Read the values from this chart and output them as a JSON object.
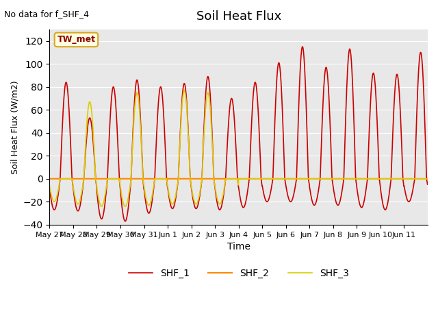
{
  "title": "Soil Heat Flux",
  "ylabel": "Soil Heat Flux (W/m2)",
  "xlabel": "Time",
  "note": "No data for f_SHF_4",
  "station_label": "TW_met",
  "ylim": [
    -40,
    130
  ],
  "yticks": [
    -40,
    -20,
    0,
    20,
    40,
    60,
    80,
    100,
    120
  ],
  "colors": {
    "SHF_1": "#cc0000",
    "SHF_2": "#ff8800",
    "SHF_3": "#ddcc00"
  },
  "xtick_labels": [
    "May 27",
    "May 28",
    "May 29",
    "May 30",
    "May 31",
    "Jun 1",
    "Jun 2",
    "Jun 3",
    "Jun 4",
    "Jun 5",
    "Jun 6",
    "Jun 7",
    "Jun 8",
    "Jun 9",
    "Jun 10",
    "Jun 11"
  ],
  "bg_color": "#e8e8e8",
  "bg_outer": "#ffffff",
  "daily_peaks_SHF1": [
    84,
    53,
    80,
    86,
    80,
    83,
    89,
    70,
    84,
    101,
    115,
    97,
    113,
    92,
    91,
    110
  ],
  "daily_peaks_SHF3": [
    0,
    67,
    0,
    75,
    0,
    77,
    75,
    0,
    0,
    0,
    0,
    0,
    0,
    0,
    0,
    0
  ],
  "daily_troughs_SHF1": [
    -27,
    -28,
    -35,
    -37,
    -30,
    -26,
    -26,
    -27,
    -25,
    -20,
    -20,
    -23,
    -23,
    -25,
    -27,
    -20
  ],
  "daily_troughs_SHF3": [
    -20,
    -22,
    -24,
    -24,
    -23,
    -22,
    -22,
    -22,
    0,
    0,
    0,
    0,
    0,
    0,
    0,
    0
  ]
}
